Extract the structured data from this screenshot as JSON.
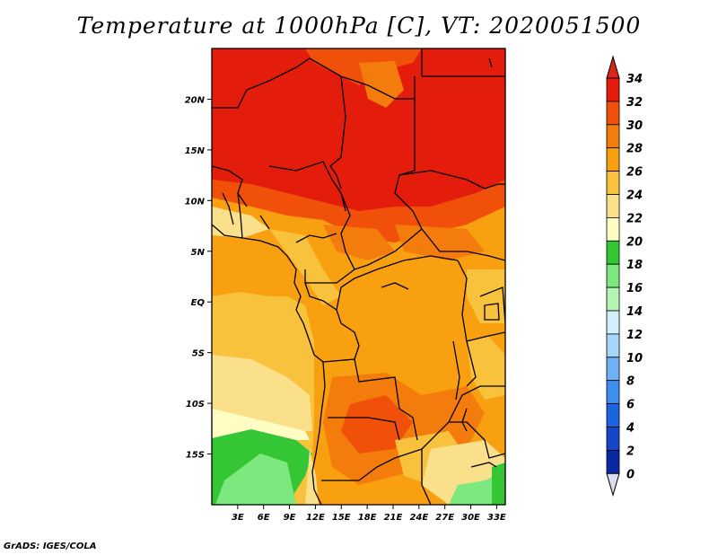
{
  "title": "Temperature at 1000hPa [C], VT: 2020051500",
  "credit": "GrADS: IGES/COLA",
  "map": {
    "lon_range": [
      0,
      34
    ],
    "lat_range": [
      -20,
      25
    ],
    "x_ticks": [
      "3E",
      "6E",
      "9E",
      "12E",
      "15E",
      "18E",
      "21E",
      "24E",
      "27E",
      "30E",
      "33E"
    ],
    "x_tick_values": [
      3,
      6,
      9,
      12,
      15,
      18,
      21,
      24,
      27,
      30,
      33
    ],
    "y_ticks": [
      "20N",
      "15N",
      "10N",
      "5N",
      "EQ",
      "5S",
      "10S",
      "15S"
    ],
    "y_tick_values": [
      20,
      15,
      10,
      5,
      0,
      -5,
      -10,
      -15
    ]
  },
  "colorbar": {
    "labels": [
      "34",
      "32",
      "30",
      "28",
      "26",
      "24",
      "22",
      "20",
      "18",
      "16",
      "14",
      "12",
      "10",
      "8",
      "6",
      "4",
      "2",
      "0"
    ],
    "colors": [
      "#e31c0c",
      "#f0500a",
      "#f47c0c",
      "#f8a010",
      "#f9c23c",
      "#fbe08c",
      "#fffcc4",
      "#35c635",
      "#7de87d",
      "#b4f5b4",
      "#d2f0fc",
      "#a6d6fb",
      "#6fb1f5",
      "#3e8ef0",
      "#1c64e0",
      "#1446c8",
      "#0a28a4",
      "#08085c"
    ],
    "top_color": "#d7261b",
    "bottom_color": "#dcdcf0"
  }
}
